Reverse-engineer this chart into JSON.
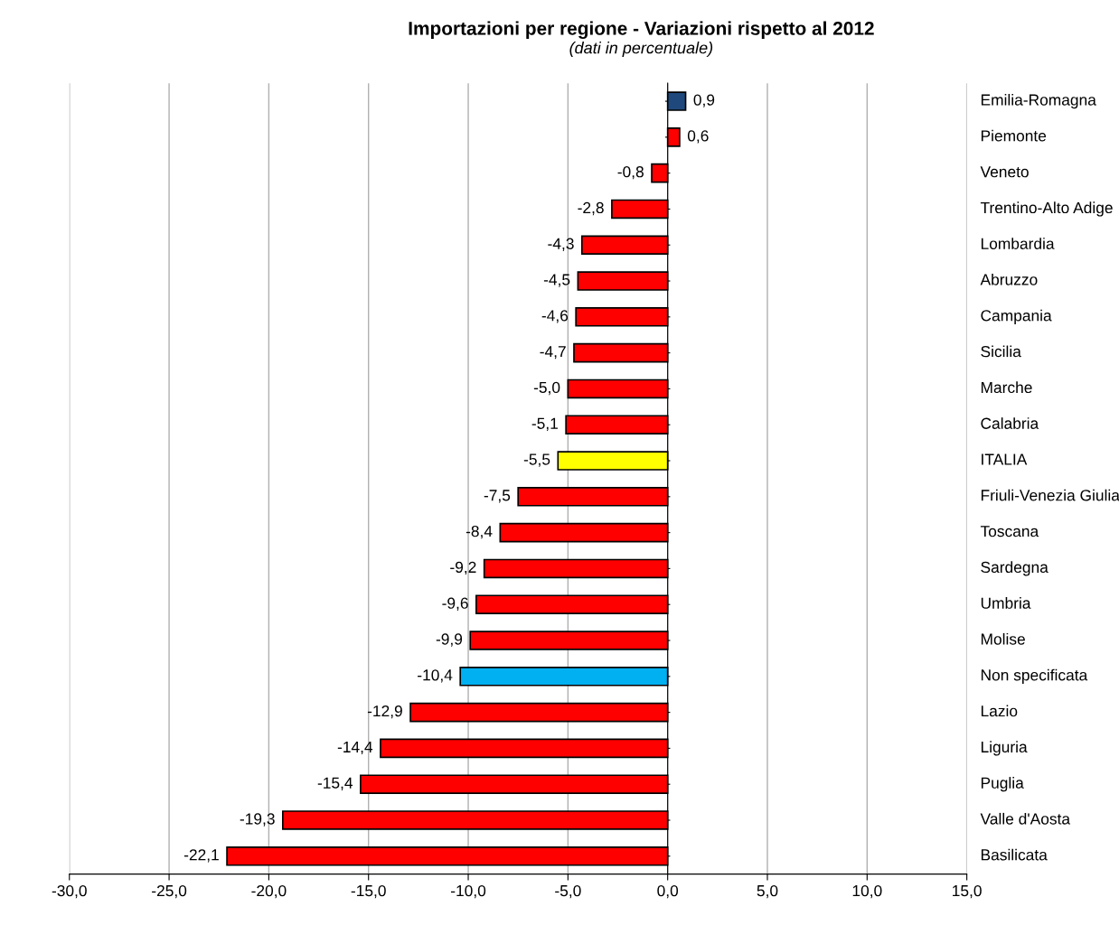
{
  "chart_data": {
    "type": "bar",
    "orientation": "horizontal",
    "title": "Importazioni per regione - Variazioni rispetto al 2012",
    "subtitle": "(dati in percentuale)",
    "categories": [
      "Emilia-Romagna",
      "Piemonte",
      "Veneto",
      "Trentino-Alto Adige",
      "Lombardia",
      "Abruzzo",
      "Campania",
      "Sicilia",
      "Marche",
      "Calabria",
      "ITALIA",
      "Friuli-Venezia Giulia",
      "Toscana",
      "Sardegna",
      "Umbria",
      "Molise",
      "Non specificata",
      "Lazio",
      "Liguria",
      "Puglia",
      "Valle d'Aosta",
      "Basilicata"
    ],
    "values": [
      0.9,
      0.6,
      -0.8,
      -2.8,
      -4.3,
      -4.5,
      -4.6,
      -4.7,
      -5.0,
      -5.1,
      -5.5,
      -7.5,
      -8.4,
      -9.2,
      -9.6,
      -9.9,
      -10.4,
      -12.9,
      -14.4,
      -15.4,
      -19.3,
      -22.1
    ],
    "value_labels": [
      "0,9",
      "0,6",
      "-0,8",
      "-2,8",
      "-4,3",
      "-4,5",
      "-4,6",
      "-4,7",
      "-5,0",
      "-5,1",
      "-5,5",
      "-7,5",
      "-8,4",
      "-9,2",
      "-9,6",
      "-9,9",
      "-10,4",
      "-12,9",
      "-14,4",
      "-15,4",
      "-19,3",
      "-22,1"
    ],
    "colors": [
      "#1f497d",
      "#ff0000",
      "#ff0000",
      "#ff0000",
      "#ff0000",
      "#ff0000",
      "#ff0000",
      "#ff0000",
      "#ff0000",
      "#ff0000",
      "#ffff00",
      "#ff0000",
      "#ff0000",
      "#ff0000",
      "#ff0000",
      "#ff0000",
      "#00b0f0",
      "#ff0000",
      "#ff0000",
      "#ff0000",
      "#ff0000",
      "#ff0000"
    ],
    "xlim": [
      -30,
      15
    ],
    "xticks": [
      {
        "value": -30,
        "label": "-30,0"
      },
      {
        "value": -25,
        "label": "-25,0"
      },
      {
        "value": -20,
        "label": "-20,0"
      },
      {
        "value": -15,
        "label": "-15,0"
      },
      {
        "value": -10,
        "label": "-10,0"
      },
      {
        "value": -5,
        "label": "-5,0"
      },
      {
        "value": 0,
        "label": "0,0"
      },
      {
        "value": 5,
        "label": "5,0"
      },
      {
        "value": 10,
        "label": "10,0"
      },
      {
        "value": 15,
        "label": "15,0"
      }
    ],
    "grid": "x",
    "legend": false
  }
}
